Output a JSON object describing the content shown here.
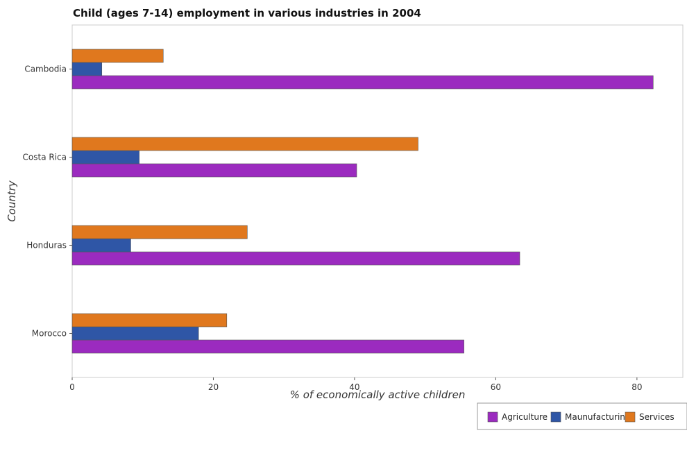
{
  "chart_data": {
    "type": "bar",
    "orientation": "horizontal",
    "title": "Child (ages 7-14) employment in various industries in 2004",
    "xlabel": "% of economically active children",
    "ylabel": "Country",
    "categories": [
      "Cambodia",
      "Costa Rica",
      "Honduras",
      "Morocco"
    ],
    "series": [
      {
        "name": "Agriculture",
        "color": "#9b2bbf",
        "values": [
          82.3,
          40.3,
          63.4,
          55.5
        ]
      },
      {
        "name": "Maunufacturing",
        "color": "#2f56a6",
        "values": [
          4.2,
          9.5,
          8.3,
          17.9
        ]
      },
      {
        "name": "Services",
        "color": "#e0781e",
        "values": [
          12.9,
          49.0,
          24.8,
          21.9
        ]
      }
    ],
    "xlim": [
      0,
      86.5
    ],
    "xticks": [
      0,
      20,
      40,
      60,
      80
    ],
    "legend_position": "bottom-right",
    "grid": false
  }
}
